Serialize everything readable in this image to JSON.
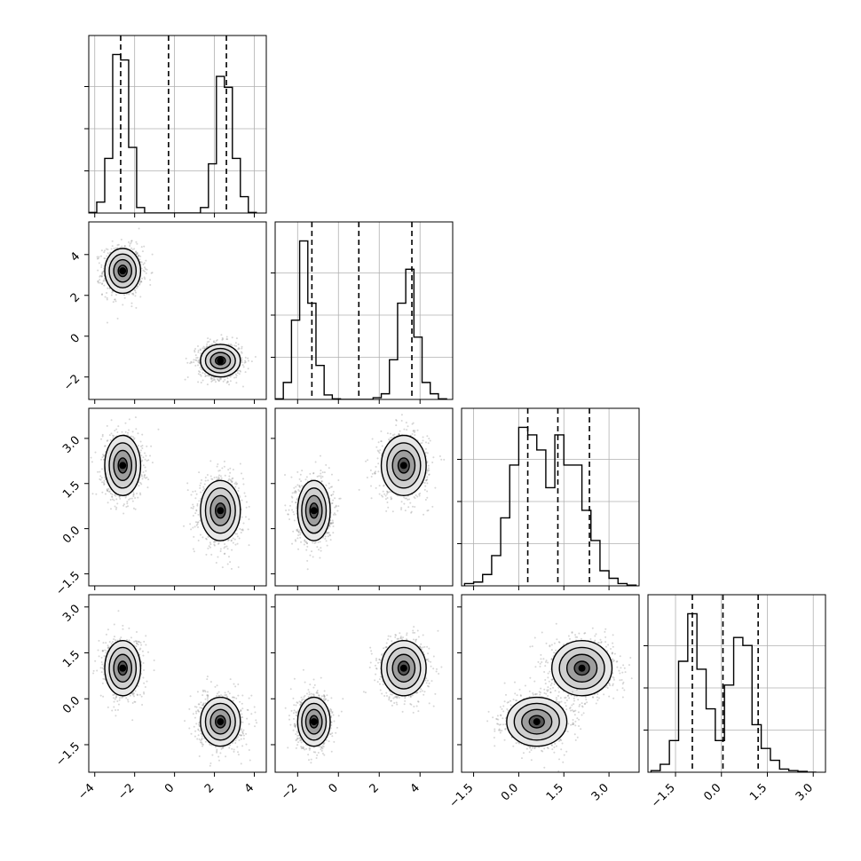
{
  "chart_data": {
    "type": "corner",
    "variables": [
      {
        "range": [
          -4.3,
          4.6
        ],
        "ticks": [
          -4,
          -2,
          0,
          2,
          4
        ],
        "tick_labels": [
          "−4",
          "−2",
          "0",
          "2",
          "4"
        ],
        "quantiles": [
          -2.7,
          -0.3,
          2.6
        ]
      },
      {
        "range": [
          -3.1,
          5.6
        ],
        "ticks": [
          -2,
          0,
          2,
          4
        ],
        "tick_labels": [
          "−2",
          "0",
          "2",
          "4"
        ],
        "quantiles": [
          -1.3,
          1.0,
          3.6
        ]
      },
      {
        "range": [
          -1.9,
          4.0
        ],
        "ticks": [
          -1.5,
          0.0,
          1.5,
          3.0
        ],
        "tick_labels": [
          "−1.5",
          "0.0",
          "1.5",
          "3.0"
        ],
        "quantiles": [
          0.3,
          1.3,
          2.35
        ]
      },
      {
        "range": [
          -2.4,
          3.4
        ],
        "ticks": [
          -1.5,
          0.0,
          1.5,
          3.0
        ],
        "tick_labels": [
          "−1.5",
          "0.0",
          "1.5",
          "3.0"
        ],
        "quantiles": [
          -0.95,
          0.05,
          1.2
        ]
      }
    ],
    "histograms": [
      {
        "bins": [
          -4.3,
          -3.9,
          -3.5,
          -3.1,
          -2.7,
          -2.3,
          -1.9,
          -1.5,
          -1.1,
          -0.7,
          -0.3,
          0.1,
          0.5,
          0.9,
          1.3,
          1.7,
          2.1,
          2.5,
          2.9,
          3.3,
          3.7,
          4.1
        ],
        "counts": [
          0.1,
          2,
          10,
          29,
          28,
          12,
          1,
          0,
          0,
          0,
          0,
          0,
          0,
          0,
          1,
          9,
          25,
          23,
          10,
          3,
          0.1
        ]
      },
      {
        "bins": [
          -3.1,
          -2.7,
          -2.3,
          -1.9,
          -1.5,
          -1.1,
          -0.7,
          -0.3,
          0.1,
          0.5,
          0.9,
          1.3,
          1.7,
          2.1,
          2.5,
          2.9,
          3.3,
          3.7,
          4.1,
          4.5,
          4.9,
          5.3
        ],
        "counts": [
          0.1,
          3,
          14,
          28,
          17,
          6,
          0.8,
          0.1,
          0,
          0,
          0,
          0,
          0.3,
          1,
          7,
          17,
          23,
          11,
          3,
          1,
          0.1
        ]
      },
      {
        "bins": [
          -1.8,
          -1.5,
          -1.2,
          -0.9,
          -0.6,
          -0.3,
          0.0,
          0.3,
          0.6,
          0.9,
          1.2,
          1.5,
          1.8,
          2.1,
          2.4,
          2.7,
          3.0,
          3.3,
          3.6,
          3.9
        ],
        "counts": [
          0.3,
          0.5,
          1.5,
          4,
          9,
          16,
          21,
          20,
          18,
          13,
          20,
          16,
          16,
          10,
          6,
          2,
          1,
          0.3,
          0.1
        ]
      },
      {
        "bins": [
          -2.3,
          -2.0,
          -1.7,
          -1.4,
          -1.1,
          -0.8,
          -0.5,
          -0.2,
          0.1,
          0.4,
          0.7,
          1.0,
          1.3,
          1.6,
          1.9,
          2.2,
          2.5,
          2.8,
          3.1
        ],
        "counts": [
          0.2,
          1,
          4,
          14,
          20,
          13,
          8,
          4,
          11,
          17,
          16,
          6,
          3,
          1.5,
          0.4,
          0.2,
          0.1,
          0
        ]
      }
    ],
    "clusters": [
      {
        "center": [
          -2.6,
          3.2,
          2.1,
          1.0
        ],
        "sd": [
          0.45,
          0.55,
          0.5,
          0.45
        ]
      },
      {
        "center": [
          2.3,
          -1.2,
          0.6,
          -0.75
        ],
        "sd": [
          0.5,
          0.4,
          0.5,
          0.4
        ]
      }
    ],
    "colors": {
      "line": "#000000",
      "grid": "#b0b0b0",
      "scatter": "#8a8a8a"
    }
  }
}
